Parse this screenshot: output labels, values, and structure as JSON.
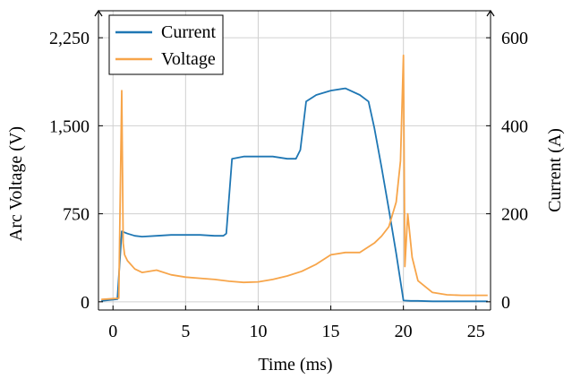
{
  "chart_data": {
    "type": "line",
    "xlabel": "Time (ms)",
    "ylabel_left": "Arc Voltage (V)",
    "ylabel_right": "Current (A)",
    "xlim": [
      -1,
      26
    ],
    "ylim_left": [
      -70,
      2480
    ],
    "ylim_right": [
      -18.67,
      661.33
    ],
    "x_ticks": [
      0,
      5,
      10,
      15,
      20,
      25
    ],
    "x_tick_labels": [
      "0",
      "5",
      "10",
      "15",
      "20",
      "25"
    ],
    "y_left_ticks": [
      0,
      750,
      1500,
      2250
    ],
    "y_left_tick_labels": [
      "0",
      "750",
      "1,500",
      "2,250"
    ],
    "y_right_ticks": [
      0,
      200,
      400,
      600
    ],
    "y_right_tick_labels": [
      "0",
      "200",
      "400",
      "600"
    ],
    "grid": true,
    "legend_position": "top-left",
    "series": [
      {
        "name": "Current",
        "axis": "right",
        "color": "#1f77b4",
        "x": [
          -0.8,
          0.3,
          0.6,
          1.0,
          1.5,
          2.0,
          3.0,
          4.0,
          5.0,
          6.0,
          7.0,
          7.6,
          7.8,
          8.2,
          9.0,
          10.0,
          11.0,
          12.0,
          12.6,
          12.9,
          13.3,
          14.0,
          15.0,
          16.0,
          17.0,
          17.6,
          18.0,
          18.5,
          19.0,
          19.5,
          20.0,
          20.5,
          21.0,
          22.0,
          23.0,
          24.0,
          25.0,
          25.8
        ],
        "y": [
          2,
          6,
          160,
          155,
          150,
          148,
          150,
          152,
          152,
          152,
          150,
          150,
          155,
          325,
          330,
          330,
          330,
          325,
          325,
          345,
          455,
          470,
          480,
          485,
          470,
          455,
          395,
          305,
          210,
          110,
          3,
          2,
          2,
          1,
          1,
          1,
          1,
          1
        ]
      },
      {
        "name": "Voltage",
        "axis": "left",
        "color": "#f7a54a",
        "x": [
          -0.8,
          0.4,
          0.6,
          0.7,
          0.8,
          1.0,
          1.5,
          2.0,
          3.0,
          4.0,
          5.0,
          6.0,
          7.0,
          8.0,
          9.0,
          10.0,
          11.0,
          12.0,
          13.0,
          14.0,
          15.0,
          16.0,
          17.0,
          18.0,
          18.5,
          19.0,
          19.5,
          19.8,
          20.0,
          20.1,
          20.3,
          20.6,
          21.0,
          22.0,
          23.0,
          24.0,
          25.0,
          25.8
        ],
        "y": [
          20,
          30,
          1800,
          500,
          400,
          350,
          280,
          250,
          270,
          230,
          210,
          200,
          190,
          175,
          165,
          170,
          190,
          220,
          260,
          320,
          400,
          420,
          420,
          500,
          560,
          640,
          850,
          1200,
          2100,
          300,
          750,
          380,
          180,
          80,
          60,
          55,
          55,
          55
        ]
      }
    ]
  }
}
